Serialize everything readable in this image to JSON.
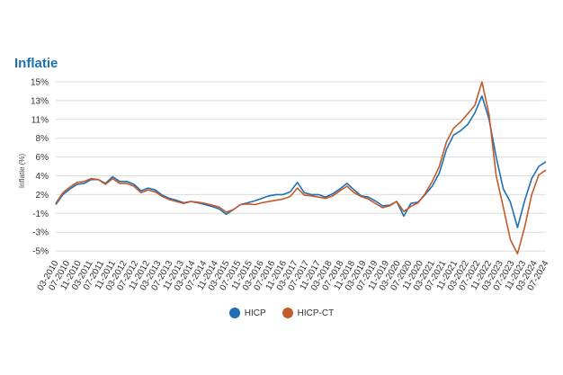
{
  "chart_data": {
    "type": "line",
    "title": "Inflatie",
    "ylabel": "Inflatie (%)",
    "xlabel": "",
    "ylim": [
      -5.5,
      15
    ],
    "y_ticks": [
      "15%",
      "13%",
      "11%",
      "8%",
      "6%",
      "4%",
      "2%",
      "-1%",
      "-3%",
      "-5%"
    ],
    "x_ticks": [
      "03-2010",
      "07-2010",
      "11-2010",
      "03-2011",
      "07-2011",
      "11-2011",
      "03-2012",
      "07-2012",
      "11-2012",
      "03-2013",
      "07-2013",
      "11-2013",
      "03-2014",
      "07-2014",
      "11-2014",
      "03-2015",
      "07-2015",
      "11-2015",
      "03-2016",
      "07-2016",
      "11-2016",
      "03-2017",
      "07-2017",
      "11-2017",
      "03-2018",
      "07-2018",
      "11-2018",
      "03-2019",
      "07-2019",
      "11-2019",
      "03-2020",
      "07-2020",
      "11-2020",
      "03-2021",
      "07-2021",
      "11-2021",
      "03-2022",
      "07-2022",
      "11-2022",
      "03-2023",
      "07-2023",
      "11-2023",
      "03-2024",
      "07-2024"
    ],
    "grid": true,
    "legend_position": "bottom",
    "series": [
      {
        "name": "HICP",
        "color": "#1f6fb2",
        "points": [
          [
            0,
            0.4
          ],
          [
            1,
            2.0
          ],
          [
            2,
            2.6
          ],
          [
            3,
            3.1
          ],
          [
            4,
            3.2
          ],
          [
            5,
            3.6
          ],
          [
            6,
            3.6
          ],
          [
            7,
            3.2
          ],
          [
            8,
            3.9
          ],
          [
            9,
            3.4
          ],
          [
            10,
            3.4
          ],
          [
            11,
            3.1
          ],
          [
            12,
            2.4
          ],
          [
            13,
            2.7
          ],
          [
            14,
            2.5
          ],
          [
            15,
            1.9
          ],
          [
            16,
            1.4
          ],
          [
            17,
            1.1
          ],
          [
            18,
            0.7
          ],
          [
            19,
            0.9
          ],
          [
            20,
            0.7
          ],
          [
            21,
            0.4
          ],
          [
            22,
            0.1
          ],
          [
            23,
            -0.3
          ],
          [
            24,
            -1.1
          ],
          [
            25,
            -0.4
          ],
          [
            26,
            0.4
          ],
          [
            27,
            0.7
          ],
          [
            28,
            1.0
          ],
          [
            29,
            1.4
          ],
          [
            30,
            1.8
          ],
          [
            31,
            2.0
          ],
          [
            32,
            2.0
          ],
          [
            33,
            2.3
          ],
          [
            34,
            3.3
          ],
          [
            35,
            2.2
          ],
          [
            36,
            2.0
          ],
          [
            37,
            2.0
          ],
          [
            38,
            1.6
          ],
          [
            39,
            2.1
          ],
          [
            40,
            2.6
          ],
          [
            41,
            3.2
          ],
          [
            42,
            2.5
          ],
          [
            43,
            1.8
          ],
          [
            44,
            1.6
          ],
          [
            45,
            1.0
          ],
          [
            46,
            0.2
          ],
          [
            47,
            0.3
          ],
          [
            48,
            0.9
          ],
          [
            49,
            -1.3
          ],
          [
            50,
            0.6
          ],
          [
            51,
            0.8
          ],
          [
            52,
            2.0
          ],
          [
            53,
            2.9
          ],
          [
            54,
            4.3
          ],
          [
            55,
            6.8
          ],
          [
            56,
            8.5
          ],
          [
            57,
            9.2
          ],
          [
            58,
            10.2
          ],
          [
            59,
            11.7
          ],
          [
            60,
            13.5
          ],
          [
            61,
            11.0
          ],
          [
            62,
            6.0
          ],
          [
            63,
            2.6
          ],
          [
            64,
            0.8
          ],
          [
            65,
            -2.5
          ],
          [
            66,
            1.0
          ],
          [
            67,
            3.7
          ],
          [
            68,
            5.0
          ],
          [
            69,
            5.5
          ]
        ]
      },
      {
        "name": "HICP-CT",
        "color": "#c35a29",
        "points": [
          [
            0,
            0.6
          ],
          [
            1,
            2.2
          ],
          [
            2,
            2.8
          ],
          [
            3,
            3.3
          ],
          [
            4,
            3.4
          ],
          [
            5,
            3.7
          ],
          [
            6,
            3.6
          ],
          [
            7,
            3.1
          ],
          [
            8,
            3.7
          ],
          [
            9,
            3.2
          ],
          [
            10,
            3.2
          ],
          [
            11,
            2.9
          ],
          [
            12,
            2.2
          ],
          [
            13,
            2.5
          ],
          [
            14,
            2.3
          ],
          [
            15,
            1.7
          ],
          [
            16,
            1.2
          ],
          [
            17,
            0.9
          ],
          [
            18,
            0.6
          ],
          [
            19,
            0.9
          ],
          [
            20,
            0.8
          ],
          [
            21,
            0.6
          ],
          [
            22,
            0.3
          ],
          [
            23,
            0.0
          ],
          [
            24,
            -0.8
          ],
          [
            25,
            -0.4
          ],
          [
            26,
            0.4
          ],
          [
            27,
            0.5
          ],
          [
            28,
            0.4
          ],
          [
            29,
            0.7
          ],
          [
            30,
            0.9
          ],
          [
            31,
            1.1
          ],
          [
            32,
            1.3
          ],
          [
            33,
            1.7
          ],
          [
            34,
            2.7
          ],
          [
            35,
            1.9
          ],
          [
            36,
            1.8
          ],
          [
            37,
            1.6
          ],
          [
            38,
            1.4
          ],
          [
            39,
            1.8
          ],
          [
            40,
            2.4
          ],
          [
            41,
            2.9
          ],
          [
            42,
            2.2
          ],
          [
            43,
            1.7
          ],
          [
            44,
            1.3
          ],
          [
            45,
            0.6
          ],
          [
            46,
            -0.1
          ],
          [
            47,
            0.2
          ],
          [
            48,
            0.9
          ],
          [
            49,
            -0.7
          ],
          [
            50,
            0.1
          ],
          [
            51,
            0.7
          ],
          [
            52,
            2.1
          ],
          [
            53,
            3.4
          ],
          [
            54,
            5.0
          ],
          [
            55,
            7.6
          ],
          [
            56,
            9.6
          ],
          [
            57,
            10.6
          ],
          [
            58,
            11.6
          ],
          [
            59,
            12.5
          ],
          [
            60,
            15.0
          ],
          [
            61,
            11.5
          ],
          [
            62,
            4.0
          ],
          [
            63,
            0.0
          ],
          [
            64,
            -3.8
          ],
          [
            65,
            -5.3
          ],
          [
            66,
            -2.5
          ],
          [
            67,
            2.0
          ],
          [
            68,
            4.1
          ],
          [
            69,
            4.6
          ]
        ]
      }
    ]
  }
}
